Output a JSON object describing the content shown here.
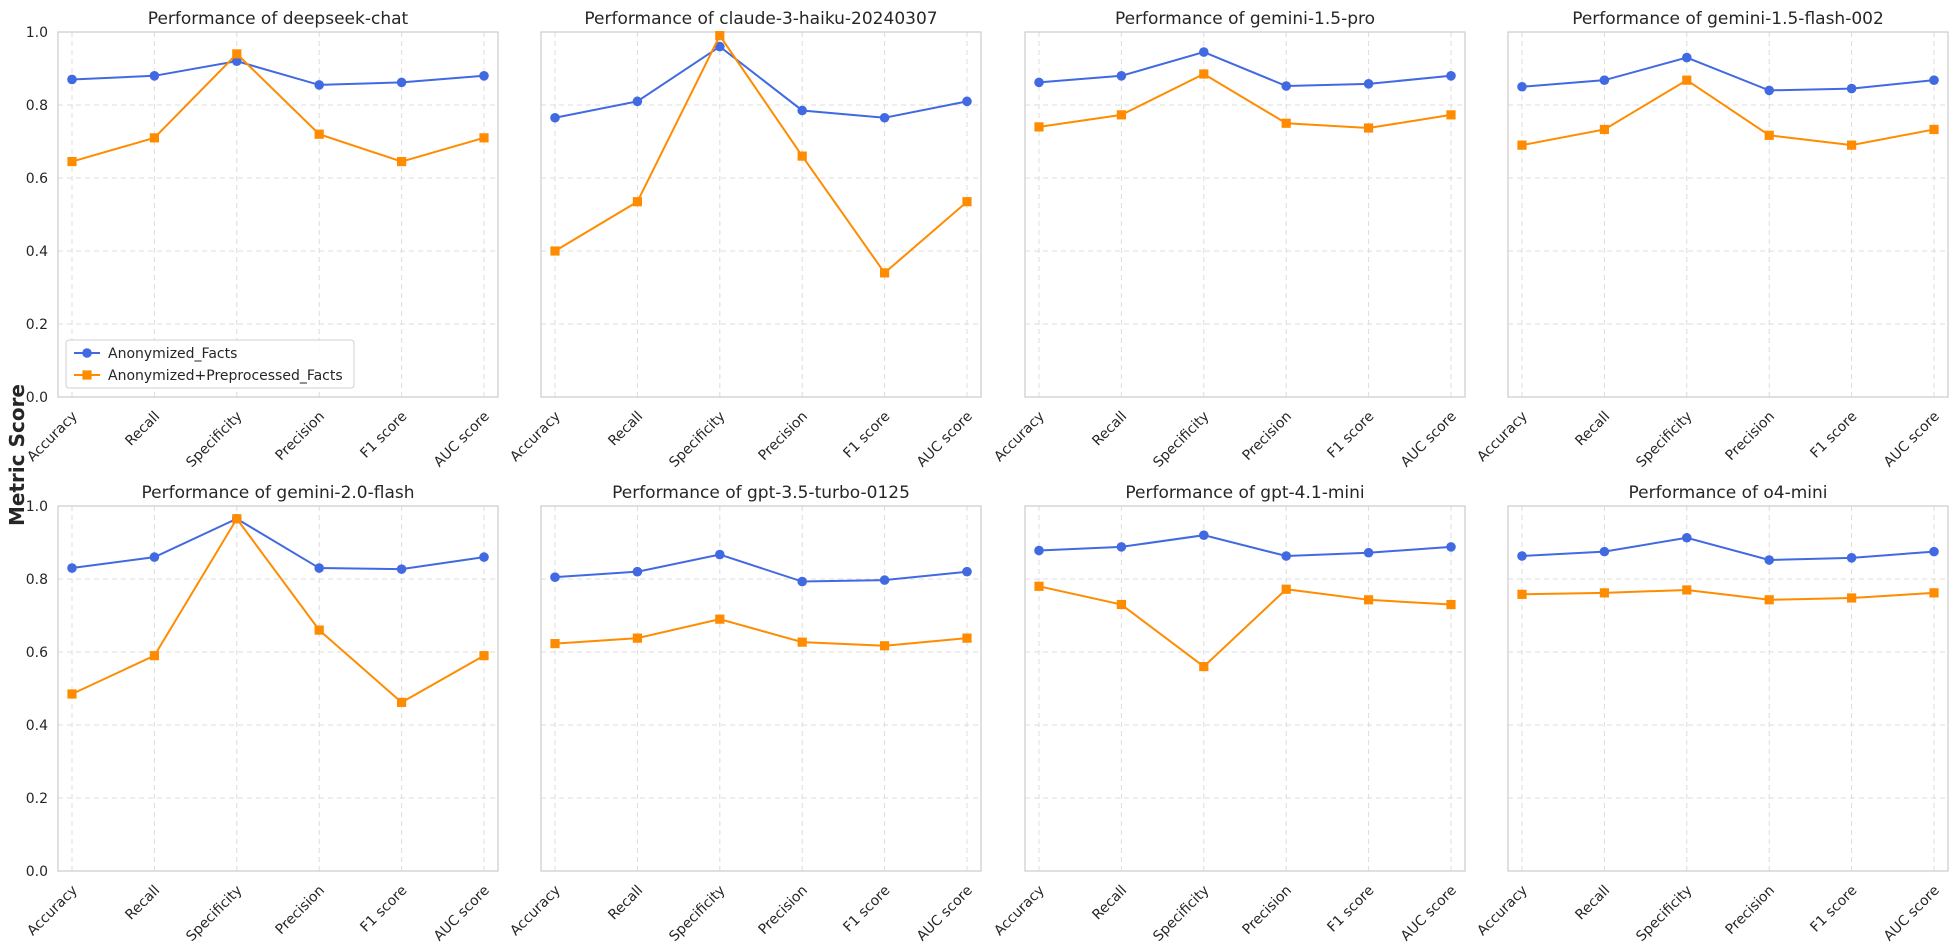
{
  "chart_data": {
    "type": "line",
    "shared_ylabel": "Metric Score",
    "categories": [
      "Accuracy",
      "Recall",
      "Specificity",
      "Precision",
      "F1 score",
      "AUC score"
    ],
    "ylim": [
      0,
      1
    ],
    "yticks": [
      "0.0",
      "0.2",
      "0.4",
      "0.6",
      "0.8",
      "1.0"
    ],
    "grid": true,
    "legend_position": "lower-left",
    "series_styles": [
      {
        "name": "Anonymized_Facts",
        "color": "#4169e1",
        "marker": "circle"
      },
      {
        "name": "Anonymized+Preprocessed_Facts",
        "color": "#ff8c00",
        "marker": "square"
      }
    ],
    "charts": [
      {
        "title": "Performance of deepseek-chat",
        "series": [
          {
            "name": "Anonymized_Facts",
            "values": [
              0.87,
              0.88,
              0.92,
              0.855,
              0.862,
              0.88
            ]
          },
          {
            "name": "Anonymized+Preprocessed_Facts",
            "values": [
              0.645,
              0.71,
              0.94,
              0.72,
              0.645,
              0.71
            ]
          }
        ]
      },
      {
        "title": "Performance of claude-3-haiku-20240307",
        "series": [
          {
            "name": "Anonymized_Facts",
            "values": [
              0.765,
              0.81,
              0.96,
              0.785,
              0.765,
              0.81
            ]
          },
          {
            "name": "Anonymized+Preprocessed_Facts",
            "values": [
              0.4,
              0.535,
              0.99,
              0.66,
              0.34,
              0.535
            ]
          }
        ]
      },
      {
        "title": "Performance of gemini-1.5-pro",
        "series": [
          {
            "name": "Anonymized_Facts",
            "values": [
              0.862,
              0.88,
              0.945,
              0.852,
              0.858,
              0.88
            ]
          },
          {
            "name": "Anonymized+Preprocessed_Facts",
            "values": [
              0.74,
              0.773,
              0.885,
              0.75,
              0.737,
              0.773
            ]
          }
        ]
      },
      {
        "title": "Performance of gemini-1.5-flash-002",
        "series": [
          {
            "name": "Anonymized_Facts",
            "values": [
              0.85,
              0.868,
              0.93,
              0.84,
              0.845,
              0.868
            ]
          },
          {
            "name": "Anonymized+Preprocessed_Facts",
            "values": [
              0.69,
              0.733,
              0.868,
              0.717,
              0.69,
              0.733
            ]
          }
        ]
      },
      {
        "title": "Performance of gemini-2.0-flash",
        "series": [
          {
            "name": "Anonymized_Facts",
            "values": [
              0.83,
              0.86,
              0.965,
              0.83,
              0.827,
              0.86
            ]
          },
          {
            "name": "Anonymized+Preprocessed_Facts",
            "values": [
              0.485,
              0.59,
              0.965,
              0.66,
              0.462,
              0.59
            ]
          }
        ]
      },
      {
        "title": "Performance of gpt-3.5-turbo-0125",
        "series": [
          {
            "name": "Anonymized_Facts",
            "values": [
              0.805,
              0.82,
              0.867,
              0.793,
              0.797,
              0.82
            ]
          },
          {
            "name": "Anonymized+Preprocessed_Facts",
            "values": [
              0.623,
              0.638,
              0.69,
              0.627,
              0.617,
              0.638
            ]
          }
        ]
      },
      {
        "title": "Performance of gpt-4.1-mini",
        "series": [
          {
            "name": "Anonymized_Facts",
            "values": [
              0.878,
              0.888,
              0.92,
              0.863,
              0.872,
              0.888
            ]
          },
          {
            "name": "Anonymized+Preprocessed_Facts",
            "values": [
              0.78,
              0.73,
              0.56,
              0.772,
              0.743,
              0.73
            ]
          }
        ]
      },
      {
        "title": "Performance of o4-mini",
        "series": [
          {
            "name": "Anonymized_Facts",
            "values": [
              0.863,
              0.875,
              0.913,
              0.852,
              0.858,
              0.875
            ]
          },
          {
            "name": "Anonymized+Preprocessed_Facts",
            "values": [
              0.758,
              0.762,
              0.77,
              0.743,
              0.748,
              0.762
            ]
          }
        ]
      }
    ]
  }
}
